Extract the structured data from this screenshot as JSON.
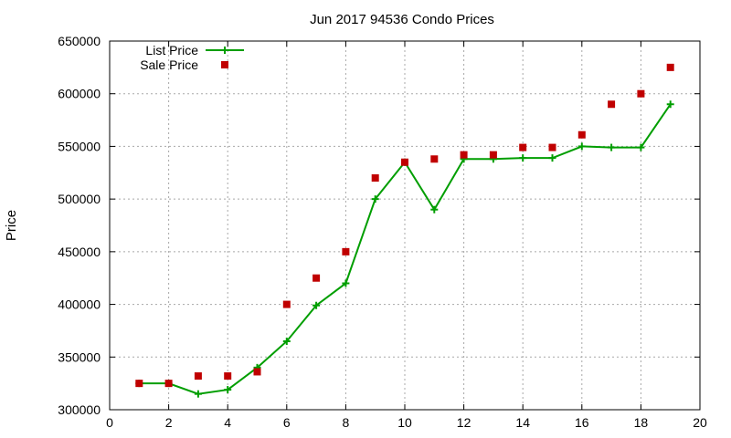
{
  "chart_data": {
    "type": "line",
    "title": "Jun 2017 94536 Condo Prices",
    "xlabel": "",
    "ylabel": "Price",
    "xlim": [
      0,
      20
    ],
    "ylim": [
      300000,
      650000
    ],
    "xticks": [
      0,
      2,
      4,
      6,
      8,
      10,
      12,
      14,
      16,
      18,
      20
    ],
    "yticks": [
      300000,
      350000,
      400000,
      450000,
      500000,
      550000,
      600000,
      650000
    ],
    "grid": true,
    "legend_position": "top-left",
    "series": [
      {
        "name": "List Price",
        "style": "line-points",
        "marker": "plus",
        "color": "#009e00",
        "x": [
          1,
          2,
          3,
          4,
          5,
          6,
          7,
          8,
          9,
          10,
          11,
          12,
          13,
          14,
          15,
          16,
          17,
          18,
          19
        ],
        "y": [
          325000,
          325000,
          315000,
          319000,
          340000,
          365000,
          399000,
          420000,
          500000,
          535000,
          490000,
          538000,
          538000,
          539000,
          539000,
          550000,
          549000,
          549000,
          590000
        ]
      },
      {
        "name": "Sale Price",
        "style": "points",
        "marker": "square",
        "color": "#c00000",
        "x": [
          1,
          2,
          3,
          4,
          5,
          6,
          7,
          8,
          9,
          10,
          11,
          12,
          13,
          14,
          15,
          16,
          17,
          18,
          19
        ],
        "y": [
          325000,
          325000,
          332000,
          332000,
          336000,
          400000,
          425000,
          450000,
          520000,
          535000,
          538000,
          542000,
          542000,
          549000,
          549000,
          561000,
          590000,
          600000,
          625000
        ]
      }
    ]
  }
}
